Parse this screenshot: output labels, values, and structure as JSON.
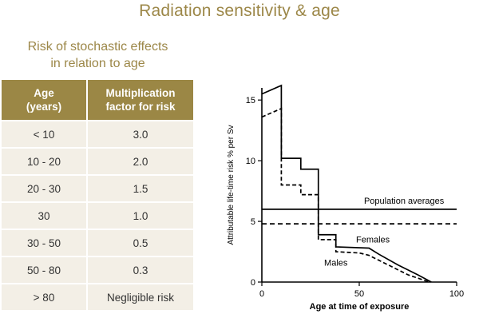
{
  "title": "Radiation sensitivity & age",
  "table": {
    "caption_line1": "Risk of stochastic effects",
    "caption_line2": "in relation to age",
    "header_age_line1": "Age",
    "header_age_line2": "(years)",
    "header_factor_line1": "Multiplication",
    "header_factor_line2": "factor for risk",
    "rows": [
      {
        "age": "< 10",
        "factor": "3.0"
      },
      {
        "age": "10 - 20",
        "factor": "2.0"
      },
      {
        "age": "20 - 30",
        "factor": "1.5"
      },
      {
        "age": "30",
        "factor": "1.0"
      },
      {
        "age": "30 - 50",
        "factor": "0.5"
      },
      {
        "age": "50 - 80",
        "factor": "0.3"
      },
      {
        "age": "> 80",
        "factor": "Negligible risk"
      }
    ]
  },
  "colors": {
    "title": "#9c8748",
    "header_bg": "#9b8745",
    "row_bg": "#f3efe6"
  },
  "chart_data": {
    "type": "line",
    "xlabel": "Age at time of exposure",
    "ylabel": "Attributable life-time risk % per Sv",
    "xlim": [
      0,
      100
    ],
    "ylim": [
      0,
      16
    ],
    "xticks": [
      0,
      50,
      100
    ],
    "yticks": [
      0,
      5,
      10,
      15
    ],
    "grid": false,
    "series": [
      {
        "name": "Females",
        "style": "solid",
        "x": [
          0,
          0,
          10,
          10,
          20,
          20,
          29,
          29,
          38,
          38,
          55,
          60,
          70,
          80,
          87
        ],
        "y": [
          15.5,
          15.5,
          16.2,
          10.2,
          10.2,
          9.3,
          9.3,
          3.9,
          3.9,
          2.9,
          2.8,
          2.3,
          1.4,
          0.6,
          0.0
        ]
      },
      {
        "name": "Males",
        "style": "dashed",
        "x": [
          0,
          0,
          10,
          10,
          20,
          20,
          29,
          29,
          38,
          38,
          50,
          55,
          65,
          75,
          86
        ],
        "y": [
          13.6,
          13.6,
          14.3,
          8.0,
          8.0,
          7.2,
          7.2,
          3.5,
          3.5,
          2.5,
          2.4,
          2.2,
          1.4,
          0.6,
          0.0
        ]
      }
    ],
    "reference_lines": [
      {
        "label": "Population averages",
        "y": 6.0,
        "style": "solid"
      },
      {
        "label": "",
        "y": 4.8,
        "style": "dashed"
      }
    ],
    "annotations": [
      "Population averages",
      "Females",
      "Males"
    ]
  }
}
